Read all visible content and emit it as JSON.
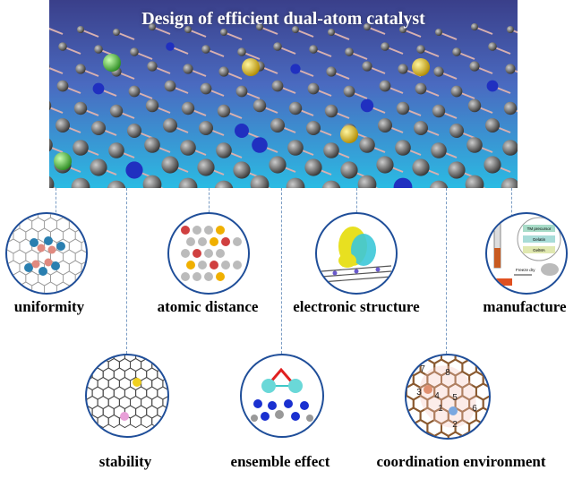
{
  "title": "Design of efficient dual-atom catalyst",
  "top_row": [
    "uniformity",
    "atomic distance",
    "electronic structure",
    "manufacture"
  ],
  "bottom_row": [
    "stability",
    "ensemble effect",
    "coordination environment"
  ],
  "manufacture_inset": [
    "TM precursor",
    "Gelatin",
    "GelMA",
    "Freeze dry"
  ],
  "coordination_numbers": [
    "1",
    "2",
    "3",
    "4",
    "5",
    "6",
    "7",
    "8"
  ],
  "colors": {
    "circle_border": "#1f4e99",
    "connector": "#7a9cc4",
    "background_blue": "#2aa8d8"
  }
}
